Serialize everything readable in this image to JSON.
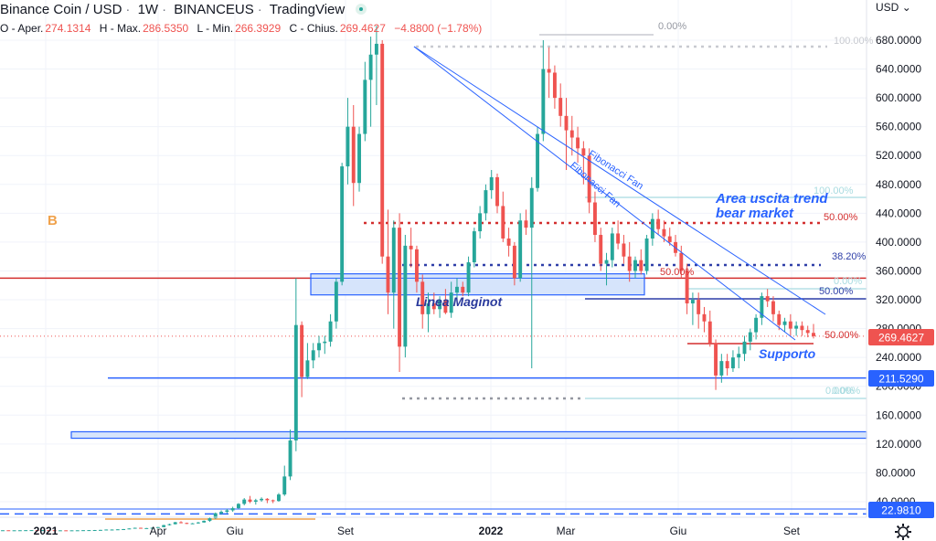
{
  "header": {
    "symbol": "Binance Coin / USD",
    "interval": "1W",
    "exchange": "BINANCEUS",
    "source": "TradingView",
    "ohlc": {
      "open_label": "O - Aper.",
      "open": "274.1314",
      "high_label": "H - Max.",
      "high": "286.5350",
      "low_label": "L - Min.",
      "low": "266.3929",
      "close_label": "C - Chius.",
      "close": "269.4627",
      "change": "−4.8800 (−1.78%)"
    }
  },
  "currency_selector": "USD",
  "price_axis": {
    "ticks": [
      "680.0000",
      "640.0000",
      "600.0000",
      "560.0000",
      "520.0000",
      "480.0000",
      "440.0000",
      "400.0000",
      "360.0000",
      "320.0000",
      "280.0000",
      "240.0000",
      "200.0000",
      "160.0000",
      "120.0000",
      "80.0000",
      "40.0000"
    ],
    "tags": [
      {
        "text": "269.4627",
        "color": "#ef5350"
      },
      {
        "text": "211.5290",
        "color": "#2962ff"
      },
      {
        "text": "22.9810",
        "color": "#2962ff"
      }
    ]
  },
  "time_axis": {
    "labels": [
      "2021",
      "Apr",
      "Giu",
      "Set",
      "2022",
      "Mar",
      "Giu",
      "Set"
    ]
  },
  "annotations": {
    "b_marker": "B",
    "fan1": "Fibonacci Fan",
    "fan2": "Fibonacci Fan",
    "area_title_1": "Area uscita trend",
    "area_title_2": "bear market",
    "maginot": "Linea Maginot",
    "supporto": "Supporto",
    "fib_100_top": "100.00%",
    "fib_0_top": "0.00%",
    "fib_50_a": "50.00%",
    "fib_38": "38.20%",
    "fib_50_b": "50.00%",
    "fib_100_b": "100.00%",
    "fib_0_b": "0.00%",
    "fib_50_c": "50.00%",
    "fib_50_d": "50.00%",
    "fib_0_c": "0.00%",
    "fib_0_d": "0.00%"
  },
  "colors": {
    "up": "#26a69a",
    "down": "#ef5350",
    "blue": "#2962ff",
    "grid": "#f0f3fa"
  },
  "chart_data": {
    "type": "candlestick",
    "interval": "1W",
    "y_axis_range": [
      0,
      720
    ],
    "candles": [
      [
        0.3,
        0.4,
        0.2,
        0.4
      ],
      [
        0.4,
        0.4,
        0.3,
        0.3
      ],
      [
        0.3,
        0.4,
        0.3,
        0.35
      ],
      [
        0.35,
        0.5,
        0.3,
        0.4
      ],
      [
        0.4,
        0.6,
        0.3,
        0.5
      ],
      [
        0.5,
        0.7,
        0.4,
        0.6
      ],
      [
        0.6,
        0.6,
        0.4,
        0.4
      ],
      [
        0.4,
        0.8,
        0.3,
        0.6
      ],
      [
        0.6,
        0.7,
        0.5,
        0.5
      ],
      [
        0.5,
        0.5,
        0.3,
        0.3
      ],
      [
        0.3,
        0.4,
        0.2,
        0.3
      ],
      [
        0.3,
        0.3,
        0.2,
        0.2
      ],
      [
        0.2,
        0.3,
        0.2,
        0.3
      ],
      [
        0.3,
        0.4,
        0.3,
        0.35
      ],
      [
        0.35,
        0.6,
        0.3,
        0.5
      ],
      [
        0.5,
        0.7,
        0.4,
        0.6
      ],
      [
        0.6,
        0.8,
        0.5,
        0.7
      ],
      [
        0.7,
        1.0,
        0.6,
        0.9
      ],
      [
        0.9,
        1.5,
        0.8,
        1.4
      ],
      [
        1.4,
        1.6,
        1.2,
        1.4
      ],
      [
        1.4,
        1.8,
        1.3,
        1.7
      ],
      [
        1.7,
        2.2,
        1.6,
        2.0
      ],
      [
        2.0,
        3.0,
        1.9,
        2.9
      ],
      [
        2.9,
        4.0,
        2.7,
        3.8
      ],
      [
        3.8,
        4.0,
        3.0,
        3.3
      ],
      [
        3.3,
        3.6,
        3.0,
        3.4
      ],
      [
        3.4,
        4.0,
        3.3,
        3.9
      ],
      [
        3.9,
        5.0,
        3.8,
        4.8
      ],
      [
        4.8,
        8.0,
        4.5,
        7.5
      ],
      [
        7.5,
        9.5,
        7.0,
        8.8
      ],
      [
        8.8,
        12.0,
        8.5,
        11.5
      ],
      [
        11.5,
        13.0,
        10.0,
        10.5
      ],
      [
        10.5,
        11.0,
        9.0,
        9.6
      ],
      [
        9.6,
        10.5,
        9.0,
        10.0
      ],
      [
        10.0,
        12.0,
        9.5,
        11.2
      ],
      [
        11.2,
        14.0,
        11.0,
        13.5
      ],
      [
        13.5,
        18.0,
        12.0,
        17.0
      ],
      [
        17.0,
        25.0,
        16.0,
        24.0
      ],
      [
        24.0,
        28.0,
        22.0,
        26.0
      ],
      [
        26.0,
        30.0,
        24.0,
        28.0
      ],
      [
        28.0,
        33.0,
        26.0,
        31.0
      ],
      [
        31.0,
        38.0,
        30.0,
        37.0
      ],
      [
        37.0,
        45.0,
        35.0,
        43.0
      ],
      [
        43.0,
        48.0,
        38.0,
        40.0
      ],
      [
        40.0,
        44.0,
        36.0,
        42.0
      ],
      [
        42.0,
        46.0,
        40.0,
        44.0
      ],
      [
        44.0,
        45.0,
        38.0,
        42.0
      ],
      [
        42.0,
        43.0,
        38.0,
        41.0
      ],
      [
        41.0,
        52.0,
        40.0,
        50.0
      ],
      [
        50.0,
        90.0,
        48.0,
        75.0
      ],
      [
        75.0,
        140.0,
        70.0,
        125.0
      ],
      [
        125.0,
        350.0,
        110.0,
        285.0
      ],
      [
        285.0,
        290.0,
        185.0,
        213.0
      ],
      [
        213.0,
        260.0,
        210.0,
        236.0
      ],
      [
        236.0,
        260.0,
        225.0,
        250.0
      ],
      [
        250.0,
        270.0,
        240.0,
        260.0
      ],
      [
        260.0,
        270.0,
        245.0,
        262.0
      ],
      [
        262.0,
        300.0,
        255.0,
        290.0
      ],
      [
        290.0,
        350.0,
        280.0,
        345.0
      ],
      [
        345.0,
        510.0,
        340.0,
        505.0
      ],
      [
        505.0,
        600.0,
        480.0,
        560.0
      ],
      [
        560.0,
        590.0,
        450.0,
        482.0
      ],
      [
        482.0,
        560.0,
        470.0,
        550.0
      ],
      [
        550.0,
        650.0,
        540.0,
        625.0
      ],
      [
        625.0,
        685.0,
        560.0,
        660.0
      ],
      [
        660.0,
        700.0,
        590.0,
        675.0
      ],
      [
        675.0,
        680.0,
        370.0,
        380.0
      ],
      [
        380.0,
        445.0,
        300.0,
        330.0
      ],
      [
        330.0,
        430.0,
        280.0,
        420.0
      ],
      [
        420.0,
        440.0,
        220.0,
        255.0
      ],
      [
        255.0,
        410.0,
        240.0,
        395.0
      ],
      [
        395.0,
        420.0,
        365.0,
        390.0
      ],
      [
        390.0,
        395.0,
        330.0,
        345.0
      ],
      [
        345.0,
        355.0,
        280.0,
        300.0
      ],
      [
        300.0,
        330.0,
        275.0,
        315.0
      ],
      [
        315.0,
        330.0,
        300.0,
        307.0
      ],
      [
        307.0,
        325.0,
        295.0,
        320.0
      ],
      [
        320.0,
        335.0,
        300.0,
        302.0
      ],
      [
        302.0,
        345.0,
        295.0,
        330.0
      ],
      [
        330.0,
        350.0,
        320.0,
        338.0
      ],
      [
        338.0,
        345.0,
        325.0,
        330.0
      ],
      [
        330.0,
        380.0,
        325.0,
        372.0
      ],
      [
        372.0,
        420.0,
        365.0,
        415.0
      ],
      [
        415.0,
        450.0,
        405.0,
        440.0
      ],
      [
        440.0,
        480.0,
        430.0,
        472.0
      ],
      [
        472.0,
        500.0,
        460.0,
        490.0
      ],
      [
        490.0,
        495.0,
        440.0,
        450.0
      ],
      [
        450.0,
        470.0,
        400.0,
        405.0
      ],
      [
        405.0,
        420.0,
        380.0,
        395.0
      ],
      [
        395.0,
        400.0,
        340.0,
        350.0
      ],
      [
        350.0,
        440.0,
        345.0,
        430.0
      ],
      [
        430.0,
        445.0,
        410.0,
        420.0
      ],
      [
        420.0,
        490.0,
        225.0,
        475.0
      ],
      [
        475.0,
        560.0,
        470.0,
        550.0
      ],
      [
        550.0,
        680.0,
        540.0,
        640.0
      ],
      [
        640.0,
        670.0,
        600.0,
        635.0
      ],
      [
        635.0,
        645.0,
        585.0,
        600.0
      ],
      [
        600.0,
        620.0,
        560.0,
        575.0
      ],
      [
        575.0,
        600.0,
        500.0,
        555.0
      ],
      [
        555.0,
        575.0,
        520.0,
        545.0
      ],
      [
        545.0,
        560.0,
        510.0,
        530.0
      ],
      [
        530.0,
        540.0,
        480.0,
        520.0
      ],
      [
        520.0,
        530.0,
        440.0,
        455.0
      ],
      [
        455.0,
        470.0,
        400.0,
        410.0
      ],
      [
        410.0,
        420.0,
        360.0,
        370.0
      ],
      [
        370.0,
        385.0,
        340.0,
        375.0
      ],
      [
        375.0,
        420.0,
        365.0,
        412.0
      ],
      [
        412.0,
        430.0,
        390.0,
        398.0
      ],
      [
        398.0,
        410.0,
        370.0,
        380.0
      ],
      [
        380.0,
        400.0,
        345.0,
        360.0
      ],
      [
        360.0,
        380.0,
        350.0,
        375.0
      ],
      [
        375.0,
        390.0,
        355.0,
        360.0
      ],
      [
        360.0,
        410.0,
        355.0,
        405.0
      ],
      [
        405.0,
        440.0,
        395.0,
        432.0
      ],
      [
        432.0,
        445.0,
        410.0,
        418.0
      ],
      [
        418.0,
        430.0,
        400.0,
        408.0
      ],
      [
        408.0,
        420.0,
        395.0,
        400.0
      ],
      [
        400.0,
        410.0,
        380.0,
        385.0
      ],
      [
        385.0,
        395.0,
        350.0,
        360.0
      ],
      [
        360.0,
        370.0,
        300.0,
        315.0
      ],
      [
        315.0,
        330.0,
        285.0,
        320.0
      ],
      [
        320.0,
        330.0,
        280.0,
        300.0
      ],
      [
        300.0,
        310.0,
        275.0,
        290.0
      ],
      [
        290.0,
        305.0,
        255.0,
        260.0
      ],
      [
        260.0,
        265.0,
        195.0,
        215.0
      ],
      [
        215.0,
        245.0,
        205.0,
        235.0
      ],
      [
        235.0,
        245.0,
        215.0,
        225.0
      ],
      [
        225.0,
        250.0,
        220.0,
        240.0
      ],
      [
        240.0,
        255.0,
        225.0,
        245.0
      ],
      [
        245.0,
        270.0,
        235.0,
        262.0
      ],
      [
        262.0,
        280.0,
        250.0,
        275.0
      ],
      [
        275.0,
        300.0,
        265.0,
        295.0
      ],
      [
        295.0,
        330.0,
        285.0,
        325.0
      ],
      [
        325.0,
        335.0,
        310.0,
        318.0
      ],
      [
        318.0,
        325.0,
        290.0,
        300.0
      ],
      [
        300.0,
        305.0,
        278.0,
        285.0
      ],
      [
        285.0,
        295.0,
        275.0,
        290.0
      ],
      [
        290.0,
        300.0,
        270.0,
        280.0
      ],
      [
        280.0,
        290.0,
        270.0,
        284.0
      ],
      [
        284.0,
        290.0,
        270.0,
        278.0
      ],
      [
        278.0,
        284.0,
        268.0,
        274.0
      ],
      [
        274.1,
        286.5,
        266.4,
        269.5
      ]
    ],
    "levels": {
      "resistance_line": 350,
      "maginot_zone": [
        342,
        356
      ],
      "support_a": 211.529,
      "support_b": 22.981,
      "zone_low": [
        128,
        137
      ]
    },
    "current_price": 269.4627
  }
}
